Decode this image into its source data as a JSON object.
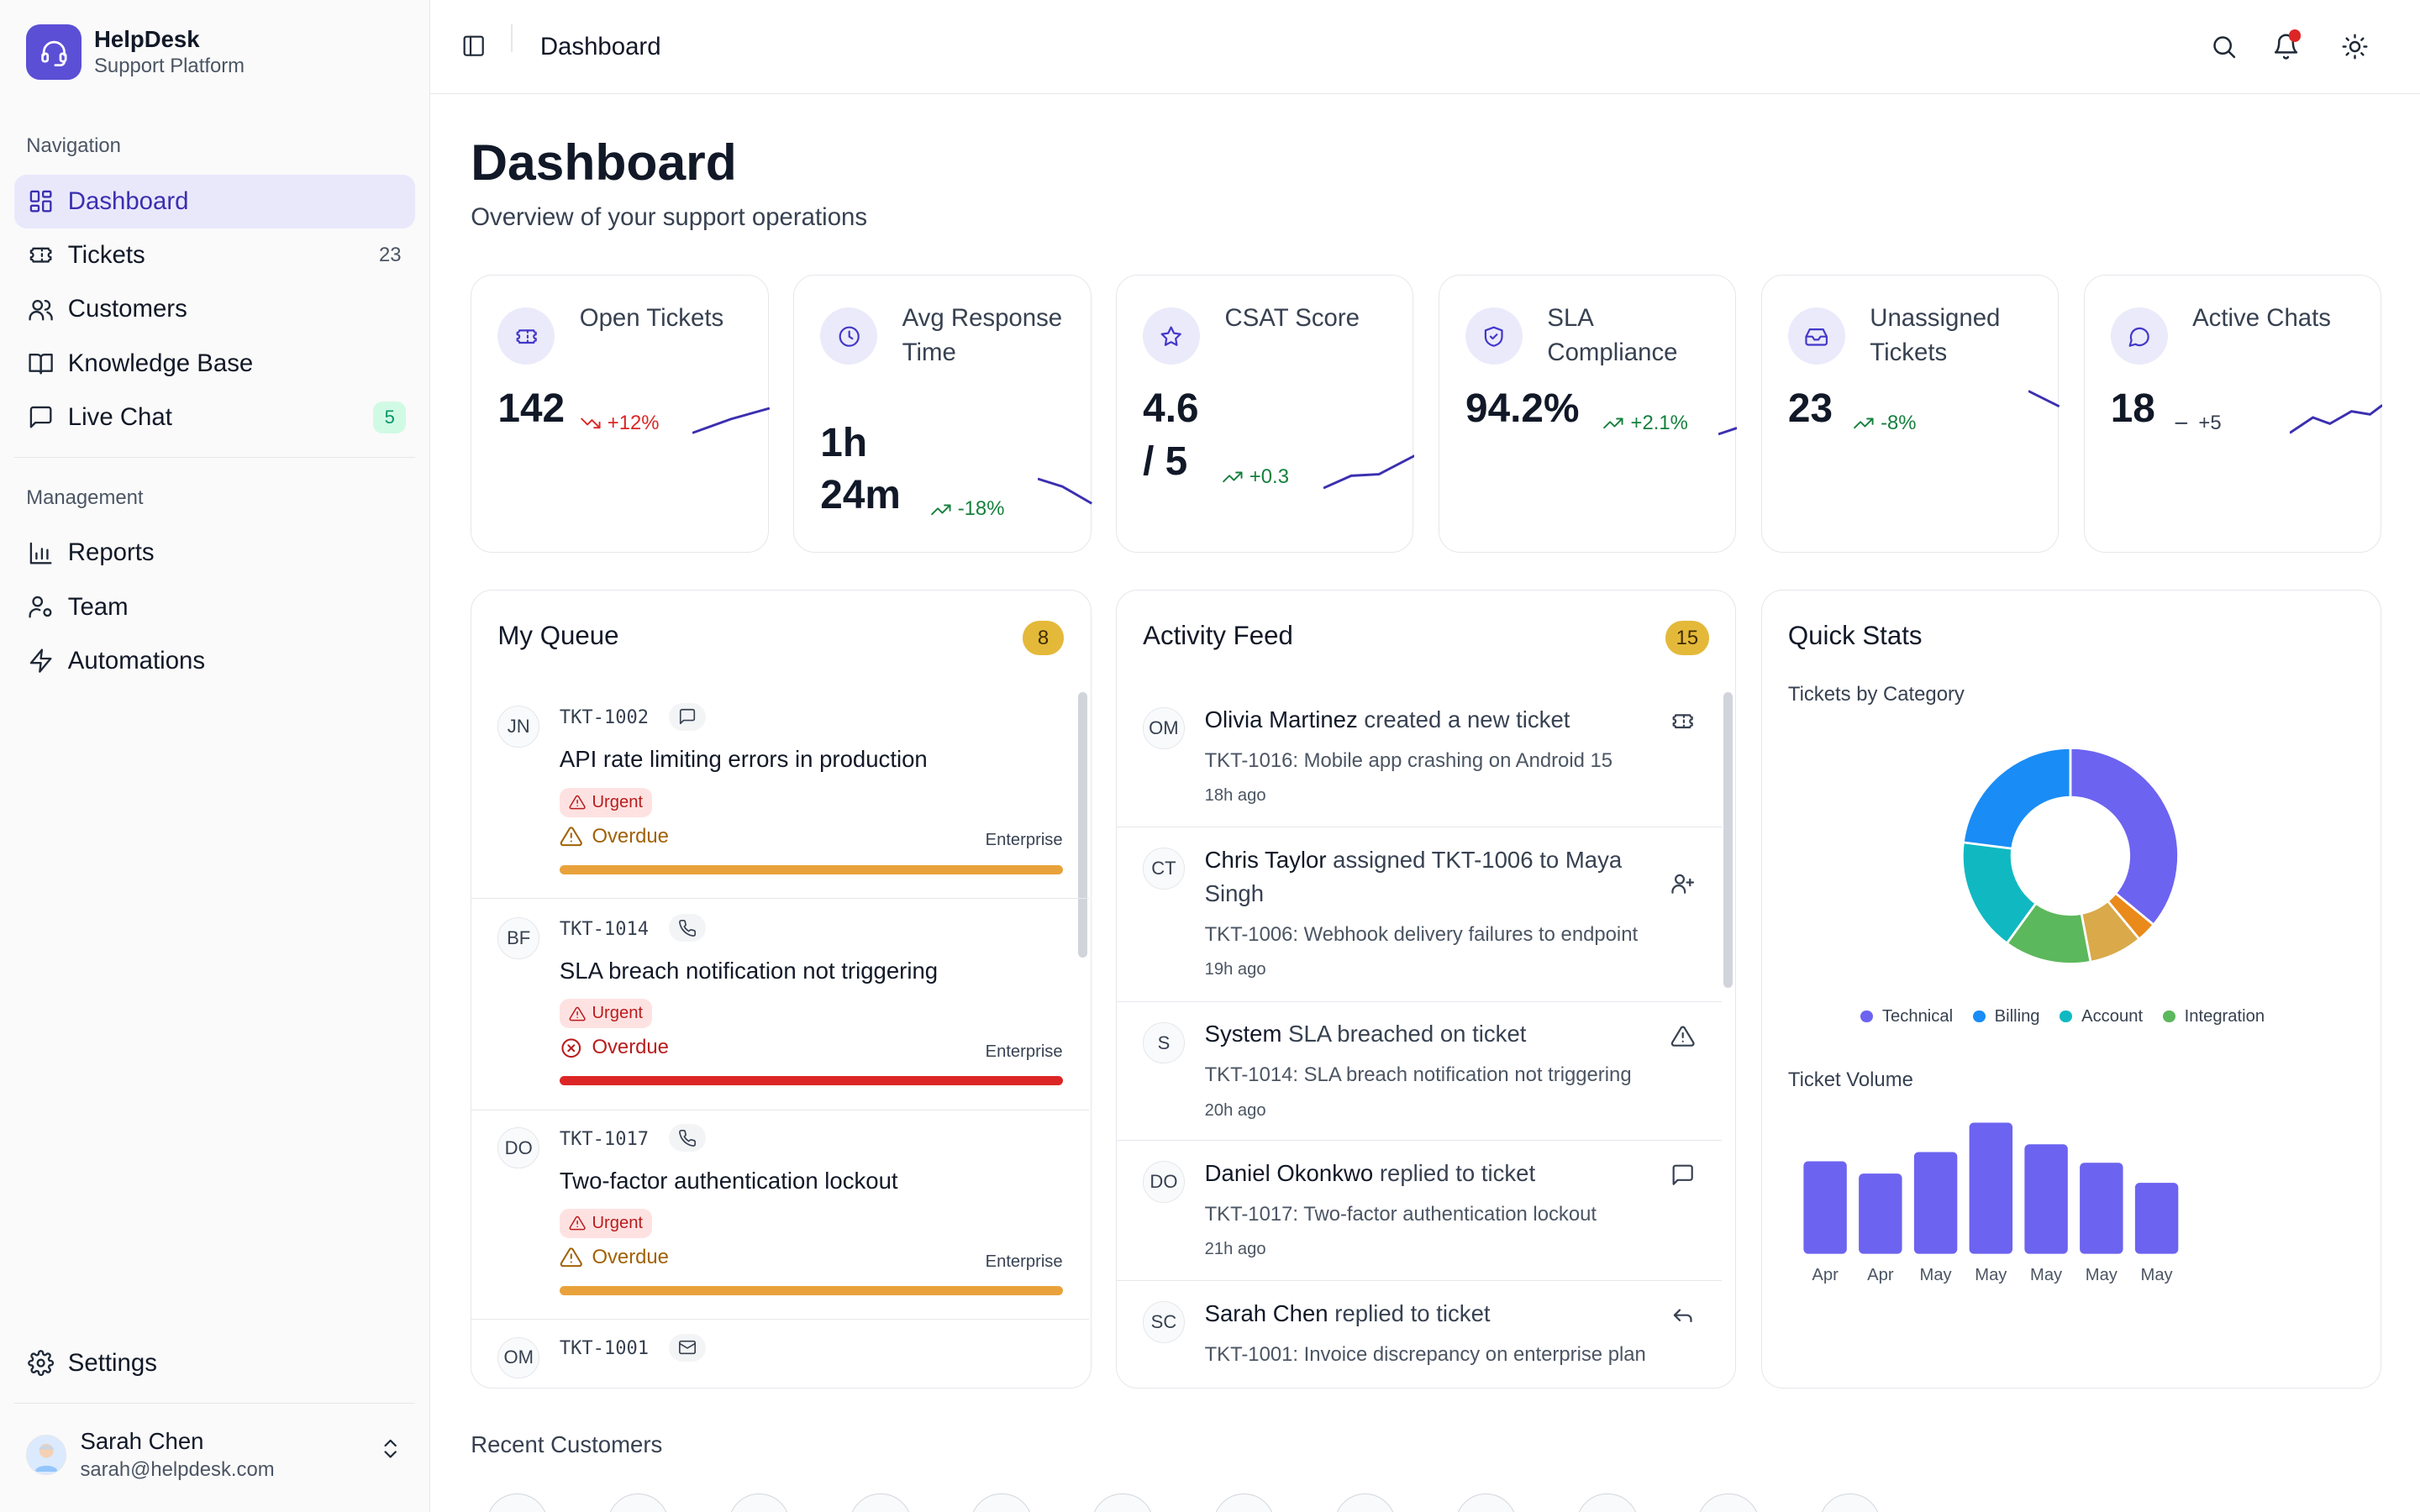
{
  "brand": {
    "name": "HelpDesk",
    "subtitle": "Support Platform"
  },
  "sidebar": {
    "navigation_label": "Navigation",
    "management_label": "Management",
    "nav": [
      {
        "label": "Dashboard",
        "icon": "layout-grid-icon",
        "active": true
      },
      {
        "label": "Tickets",
        "icon": "ticket-icon",
        "count": "23"
      },
      {
        "label": "Customers",
        "icon": "users-icon"
      },
      {
        "label": "Knowledge Base",
        "icon": "book-open-icon"
      },
      {
        "label": "Live Chat",
        "icon": "message-square-icon",
        "badge": "5"
      }
    ],
    "management": [
      {
        "label": "Reports",
        "icon": "bar-chart-icon"
      },
      {
        "label": "Team",
        "icon": "user-cog-icon"
      },
      {
        "label": "Automations",
        "icon": "zap-icon"
      }
    ],
    "settings_label": "Settings",
    "user": {
      "name": "Sarah Chen",
      "email": "sarah@helpdesk.com"
    }
  },
  "topbar": {
    "title": "Dashboard"
  },
  "page": {
    "title": "Dashboard",
    "subtitle": "Overview of your support operations"
  },
  "kpis": [
    {
      "label": "Open Tickets",
      "value": "142",
      "delta": "+12%",
      "trend": "down"
    },
    {
      "label": "Avg Response Time",
      "value_line1": "1h",
      "value_line2": "24m",
      "delta": "-18%",
      "trend": "up"
    },
    {
      "label": "CSAT Score",
      "value_line1": "4.6",
      "value_line2": "/ 5",
      "delta": "+0.3",
      "trend": "up"
    },
    {
      "label": "SLA Compliance",
      "value": "94.2%",
      "delta": "+2.1%",
      "trend": "up"
    },
    {
      "label": "Unassigned Tickets",
      "value": "23",
      "delta": "-8%",
      "trend": "up"
    },
    {
      "label": "Active Chats",
      "value": "18",
      "delta": "+5",
      "trend": "flat"
    }
  ],
  "queue": {
    "title": "My Queue",
    "count": "8",
    "items": [
      {
        "initials": "JN",
        "id": "TKT-1002",
        "channel": "chat",
        "title": "API rate limiting errors in production",
        "priority": "Urgent",
        "status": "Overdue",
        "tier": "Enterprise",
        "bar_color": "#e9a23b"
      },
      {
        "initials": "BF",
        "id": "TKT-1014",
        "channel": "phone",
        "title": "SLA breach notification not triggering",
        "priority": "Urgent",
        "status": "Overdue",
        "tier": "Enterprise",
        "bar_color": "#dc2626"
      },
      {
        "initials": "DO",
        "id": "TKT-1017",
        "channel": "phone",
        "title": "Two-factor authentication lockout",
        "priority": "Urgent",
        "status": "Overdue",
        "tier": "Enterprise",
        "bar_color": "#e9a23b"
      },
      {
        "initials": "OM",
        "id": "TKT-1001",
        "channel": "email"
      }
    ]
  },
  "activity": {
    "title": "Activity Feed",
    "count": "15",
    "items": [
      {
        "initials": "OM",
        "actor": "Olivia Martinez",
        "action": " created a new ticket",
        "desc": "TKT-1016: Mobile app crashing on Android 15",
        "time": "18h ago"
      },
      {
        "initials": "CT",
        "actor": "Chris Taylor",
        "action": " assigned TKT-1006 to Maya Singh",
        "desc": "TKT-1006: Webhook delivery failures to endpoint",
        "time": "19h ago"
      },
      {
        "initials": "S",
        "actor": "System",
        "action": " SLA breached on ticket",
        "desc": "TKT-1014: SLA breach notification not triggering",
        "time": "20h ago"
      },
      {
        "initials": "DO",
        "actor": "Daniel Okonkwo",
        "action": " replied to ticket",
        "desc": "TKT-1017: Two-factor authentication lockout",
        "time": "21h ago"
      },
      {
        "initials": "SC",
        "actor": "Sarah Chen",
        "action": " replied to ticket",
        "desc": "TKT-1001: Invoice discrepancy on enterprise plan",
        "time": ""
      }
    ]
  },
  "quick_stats": {
    "title": "Quick Stats",
    "category_title": "Tickets by Category",
    "volume_title": "Ticket Volume",
    "legend": [
      {
        "name": "Technical",
        "color": "#6c63f0"
      },
      {
        "name": "Billing",
        "color": "#1a8cf5"
      },
      {
        "name": "Account",
        "color": "#10b9c2"
      },
      {
        "name": "Integration",
        "color": "#5cb85c"
      }
    ]
  },
  "chart_data": [
    {
      "type": "pie",
      "title": "Tickets by Category",
      "labels": [
        "Technical",
        "",
        "",
        "Integration",
        "Account",
        "Billing"
      ],
      "values": [
        36,
        3,
        8,
        13,
        17,
        23
      ],
      "colors": [
        "#6c63f0",
        "#e98a1a",
        "#d9a94a",
        "#5cb85c",
        "#10b9c2",
        "#1a8cf5"
      ]
    },
    {
      "type": "bar",
      "title": "Ticket Volume",
      "categories": [
        "Apr",
        "Apr",
        "May",
        "May",
        "May",
        "May",
        "May"
      ],
      "values": [
        60,
        52,
        66,
        85,
        71,
        59,
        46
      ],
      "ylim": [
        0,
        100
      ],
      "color": "#6c63f0"
    }
  ],
  "recent": {
    "title": "Recent Customers"
  }
}
